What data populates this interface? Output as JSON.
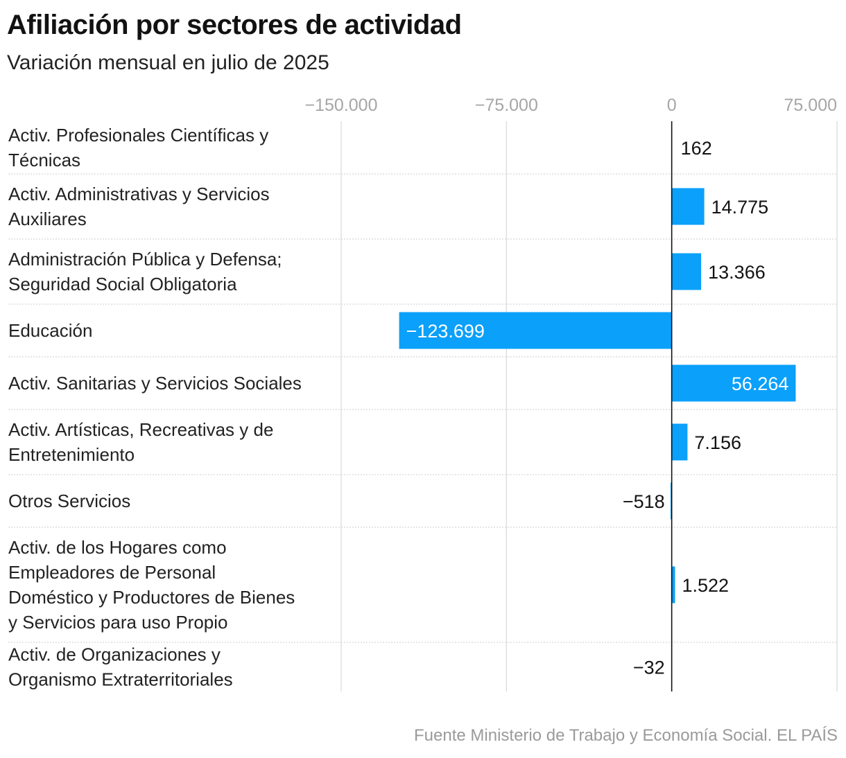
{
  "header": {
    "title": "Afiliación por sectores de actividad",
    "subtitle": "Variación mensual en julio de 2025"
  },
  "footer": {
    "source": "Fuente Ministerio de Trabajo y Economía Social",
    "brand": "EL PAÍS"
  },
  "colors": {
    "bar": "#0ba0fa",
    "grid": "#dcdcdc",
    "separator": "#cccccc",
    "axis": "#111111"
  },
  "chart_data": {
    "type": "bar",
    "orientation": "horizontal",
    "title": "Afiliación por sectores de actividad",
    "subtitle": "Variación mensual en julio de 2025",
    "xlim": [
      -150000,
      75000
    ],
    "x_ticks": [
      -150000,
      -75000,
      0,
      75000
    ],
    "x_tick_labels": [
      "−150.000",
      "−75.000",
      "0",
      "75.000"
    ],
    "grid": true,
    "categories": [
      [
        "Activ. Profesionales Científicas y",
        "Técnicas"
      ],
      [
        "Activ. Administrativas y Servicios",
        "Auxiliares"
      ],
      [
        "Administración Pública y Defensa;",
        "Seguridad Social Obligatoria"
      ],
      [
        "Educación"
      ],
      [
        "Activ. Sanitarias y Servicios Sociales"
      ],
      [
        "Activ. Artísticas, Recreativas y de",
        "Entretenimiento"
      ],
      [
        "Otros Servicios"
      ],
      [
        "Activ. de los Hogares como",
        "Empleadores de Personal",
        "Doméstico y Productores de Bienes",
        "y Servicios para uso Propio"
      ],
      [
        "Activ. de Organizaciones y",
        "Organismo Extraterritoriales"
      ]
    ],
    "values": [
      162,
      14775,
      13366,
      -123699,
      56264,
      7156,
      -518,
      1522,
      -32
    ],
    "value_labels": [
      "162",
      "14.775",
      "13.366",
      "−123.699",
      "56.264",
      "7.156",
      "−518",
      "1.522",
      "−32"
    ]
  }
}
